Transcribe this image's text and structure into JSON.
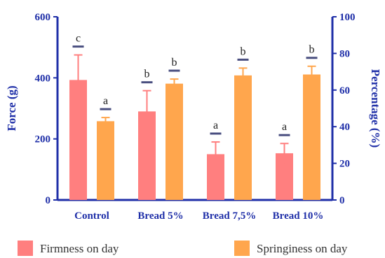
{
  "chart_data": {
    "type": "bar",
    "categories": [
      "Control",
      "Bread 5%",
      "Bread 7,5%",
      "Bread 10%"
    ],
    "series": [
      {
        "name": "Firmness on day",
        "axis": "left",
        "color": "#ff7f7f",
        "values": [
          393,
          290,
          150,
          153
        ],
        "errors": [
          82,
          68,
          40,
          32
        ],
        "significance": [
          "c",
          "b",
          "a",
          "a"
        ]
      },
      {
        "name": "Springiness on day",
        "axis": "right",
        "color": "#ffa64d",
        "values": [
          43,
          63.5,
          68,
          68.5
        ],
        "errors": [
          2,
          2.5,
          4,
          4.5
        ],
        "significance": [
          "a",
          "b",
          "b",
          "b"
        ]
      }
    ],
    "ylabel": "Force (g)",
    "ylim": [
      0,
      600
    ],
    "yticks": [
      "0",
      "200",
      "400",
      "600"
    ],
    "y2label": "Percentage (%)",
    "y2lim": [
      0,
      100
    ],
    "y2ticks": [
      "0",
      "20",
      "40",
      "60",
      "80",
      "100"
    ],
    "axis_color": "#1f2fa8",
    "grid": false,
    "legend_position": "bottom"
  }
}
